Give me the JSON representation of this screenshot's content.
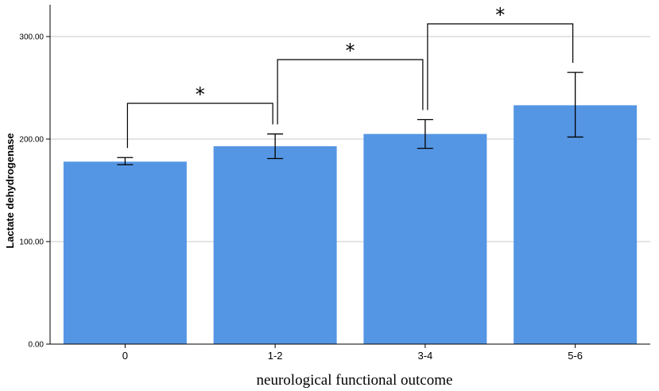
{
  "chart_data": {
    "type": "bar",
    "title": "",
    "xlabel": "neurological functional outcome",
    "ylabel": "Lactate dehydrogenase",
    "categories": [
      "0",
      "1-2",
      "3-4",
      "5-6"
    ],
    "values": [
      178,
      193,
      205,
      233
    ],
    "error_low": [
      175,
      181,
      191,
      202
    ],
    "error_high": [
      182,
      205,
      219,
      265
    ],
    "ylim": [
      0,
      330
    ],
    "yticks": [
      0,
      100,
      200,
      300
    ],
    "ytick_labels": [
      "0.00",
      "100.00",
      "200.00",
      "300.00"
    ],
    "grid": "horizontal",
    "bar_color": "#5596e4",
    "significance": [
      {
        "from": "0",
        "to": "1-2",
        "label": "*"
      },
      {
        "from": "1-2",
        "to": "3-4",
        "label": "*"
      },
      {
        "from": "3-4",
        "to": "5-6",
        "label": "*"
      }
    ]
  }
}
